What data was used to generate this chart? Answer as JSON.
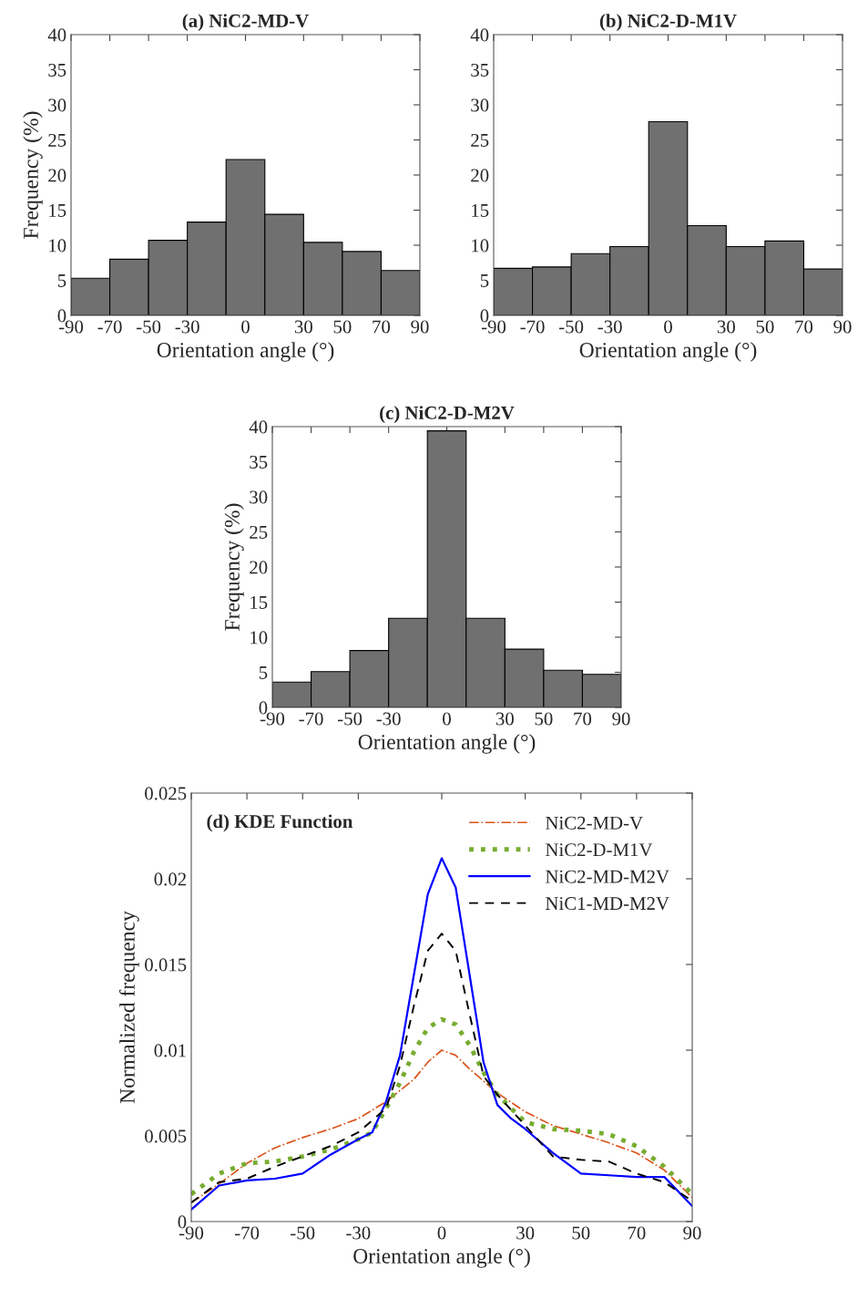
{
  "chart_data": [
    {
      "type": "histogram",
      "title": "(a) NiC2-MD-V",
      "xlabel": "Orientation angle (°)",
      "ylabel": "Frequency (%)",
      "bins": [
        -90,
        -70,
        -50,
        -30,
        -10,
        10,
        30,
        50,
        70,
        90
      ],
      "values": [
        5.3,
        8.0,
        10.7,
        13.3,
        22.2,
        14.4,
        10.4,
        9.1,
        6.4
      ],
      "color": "#707070",
      "xlim": [
        -90,
        90
      ],
      "ylim": [
        0,
        40
      ],
      "xticks": [
        -90,
        -70,
        -50,
        -30,
        0,
        30,
        50,
        70,
        90
      ],
      "yticks": [
        0,
        5,
        10,
        15,
        20,
        25,
        30,
        35,
        40
      ]
    },
    {
      "type": "histogram",
      "title": "(b) NiC2-D-M1V",
      "xlabel": "Orientation angle (°)",
      "bins": [
        -90,
        -70,
        -50,
        -30,
        -10,
        10,
        30,
        50,
        70,
        90
      ],
      "values": [
        6.7,
        6.9,
        8.8,
        9.8,
        27.6,
        12.8,
        9.8,
        10.6,
        6.6
      ],
      "color": "#707070",
      "xlim": [
        -90,
        90
      ],
      "ylim": [
        0,
        40
      ],
      "xticks": [
        -90,
        -70,
        -50,
        -30,
        0,
        30,
        50,
        70,
        90
      ],
      "yticks": [
        0,
        5,
        10,
        15,
        20,
        25,
        30,
        35,
        40
      ]
    },
    {
      "type": "histogram",
      "title": "(c) NiC2-D-M2V",
      "xlabel": "Orientation angle (°)",
      "ylabel": "Frequency (%)",
      "bins": [
        -90,
        -70,
        -50,
        -30,
        -10,
        10,
        30,
        50,
        70,
        90
      ],
      "values": [
        3.6,
        5.1,
        8.1,
        12.7,
        39.4,
        12.7,
        8.3,
        5.3,
        4.7
      ],
      "color": "#707070",
      "xlim": [
        -90,
        90
      ],
      "ylim": [
        0,
        40
      ],
      "xticks": [
        -90,
        -70,
        -50,
        -30,
        0,
        30,
        50,
        70,
        90
      ],
      "yticks": [
        0,
        5,
        10,
        15,
        20,
        25,
        30,
        35,
        40
      ]
    },
    {
      "type": "line",
      "annotations": [
        "(d) KDE Function"
      ],
      "xlabel": "Orientation angle (°)",
      "ylabel": "Normalized frequency",
      "xlim": [
        -90,
        90
      ],
      "ylim": [
        0,
        0.025
      ],
      "xticks": [
        -90,
        -70,
        -50,
        -30,
        0,
        30,
        50,
        70,
        90
      ],
      "yticks": [
        0,
        0.005,
        0.01,
        0.015,
        0.02,
        0.025
      ],
      "legend": "top right",
      "series": [
        {
          "name": "NiC2-MD-V",
          "color": "#d95319",
          "line_style": "dashdot",
          "x": [
            -90,
            -80,
            -70,
            -60,
            -50,
            -40,
            -30,
            -20,
            -10,
            -5,
            0,
            5,
            10,
            20,
            30,
            40,
            50,
            60,
            70,
            80,
            90
          ],
          "values": [
            0.0011,
            0.0022,
            0.0034,
            0.0043,
            0.0049,
            0.0054,
            0.006,
            0.007,
            0.0083,
            0.0093,
            0.01,
            0.0097,
            0.0089,
            0.0075,
            0.0064,
            0.0056,
            0.0051,
            0.0046,
            0.004,
            0.003,
            0.0014
          ]
        },
        {
          "name": "NiC2-D-M1V",
          "color": "#77ac30",
          "line_style": "dotted",
          "x": [
            -90,
            -80,
            -70,
            -60,
            -50,
            -40,
            -30,
            -25,
            -20,
            -15,
            -10,
            -5,
            0,
            5,
            10,
            15,
            20,
            30,
            40,
            50,
            60,
            70,
            80,
            90
          ],
          "values": [
            0.0016,
            0.0028,
            0.0034,
            0.0035,
            0.0038,
            0.0042,
            0.0048,
            0.0052,
            0.0066,
            0.0081,
            0.0099,
            0.0113,
            0.0118,
            0.0115,
            0.0103,
            0.0087,
            0.0074,
            0.0058,
            0.0054,
            0.0053,
            0.0051,
            0.0044,
            0.0032,
            0.0016
          ]
        },
        {
          "name": "NiC2-MD-M2V",
          "color": "#0000ff",
          "line_style": "solid",
          "x": [
            -90,
            -80,
            -70,
            -60,
            -50,
            -40,
            -30,
            -25,
            -20,
            -15,
            -10,
            -5,
            0,
            5,
            10,
            15,
            20,
            25,
            30,
            40,
            50,
            60,
            70,
            80,
            90
          ],
          "values": [
            0.0007,
            0.0021,
            0.0024,
            0.0025,
            0.0028,
            0.0039,
            0.0048,
            0.0052,
            0.007,
            0.0097,
            0.0144,
            0.0191,
            0.0212,
            0.0195,
            0.0144,
            0.0093,
            0.0068,
            0.006,
            0.0054,
            0.004,
            0.0028,
            0.0027,
            0.0026,
            0.0026,
            0.0009
          ]
        },
        {
          "name": "NiC1-MD-M2V",
          "color": "#000000",
          "line_style": "dashed",
          "x": [
            -90,
            -80,
            -70,
            -60,
            -50,
            -40,
            -30,
            -20,
            -15,
            -10,
            -5,
            0,
            5,
            10,
            15,
            20,
            30,
            40,
            50,
            60,
            70,
            80,
            90
          ],
          "values": [
            0.0011,
            0.0023,
            0.0025,
            0.0032,
            0.0038,
            0.0044,
            0.0052,
            0.0066,
            0.0091,
            0.0126,
            0.0158,
            0.0168,
            0.0158,
            0.0121,
            0.0085,
            0.0074,
            0.0056,
            0.0038,
            0.0036,
            0.0035,
            0.0028,
            0.0023,
            0.0012
          ]
        }
      ]
    }
  ]
}
